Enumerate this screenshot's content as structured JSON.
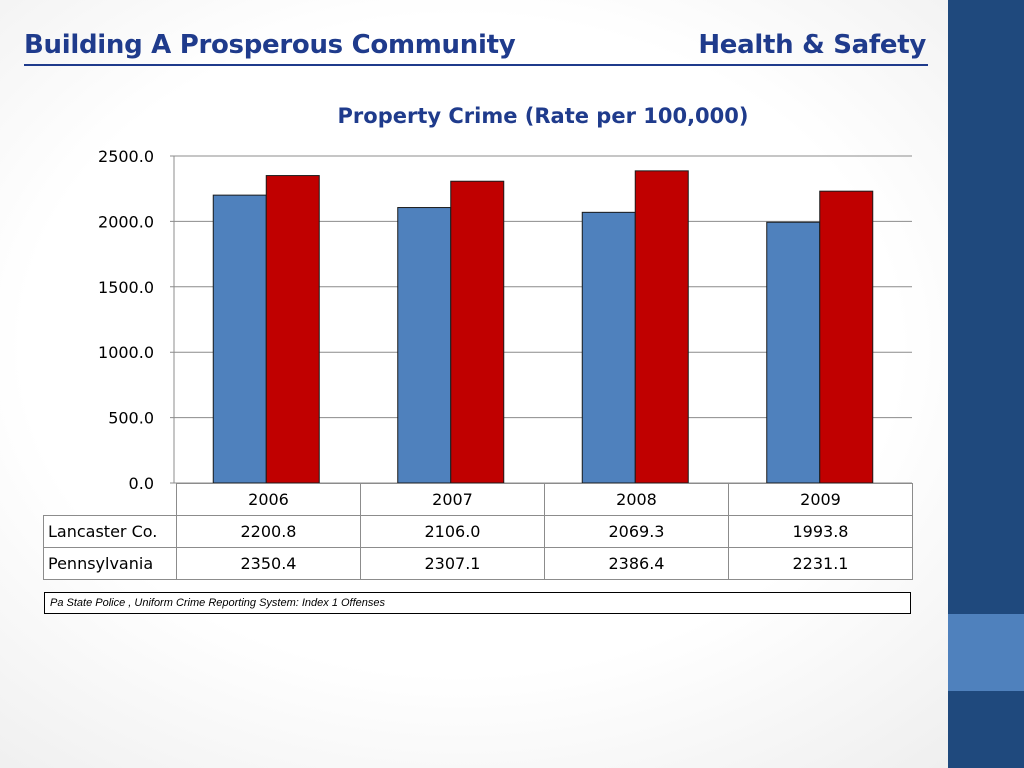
{
  "header": {
    "left_title": "Building A Prosperous Community",
    "right_title": "Health & Safety"
  },
  "chart_data": {
    "type": "bar",
    "title": "Property Crime (Rate per 100,000)",
    "categories": [
      "2006",
      "2007",
      "2008",
      "2009"
    ],
    "series": [
      {
        "name": "Lancaster Co.",
        "values": [
          2200.8,
          2106.0,
          2069.3,
          1993.8
        ],
        "value_labels": [
          "2200.8",
          "2106.0",
          "2069.3",
          "1993.8"
        ],
        "color": "#4f81bd"
      },
      {
        "name": "Pennsylvania",
        "values": [
          2350.4,
          2307.1,
          2386.4,
          2231.1
        ],
        "value_labels": [
          "2350.4",
          "2307.1",
          "2386.4",
          "2231.1"
        ],
        "color": "#c00000"
      }
    ],
    "ylim": [
      0,
      2500
    ],
    "yticks": [
      "0.0",
      "500.0",
      "1000.0",
      "1500.0",
      "2000.0",
      "2500.0"
    ],
    "grid": true,
    "legend": "data-table"
  },
  "source": "Pa State Police , Uniform Crime Reporting System: Index 1 Offenses",
  "colors": {
    "sidebar": "#1f497d",
    "sidebar_accent": "#4f81bd",
    "title_blue": "#1f3b8c"
  }
}
